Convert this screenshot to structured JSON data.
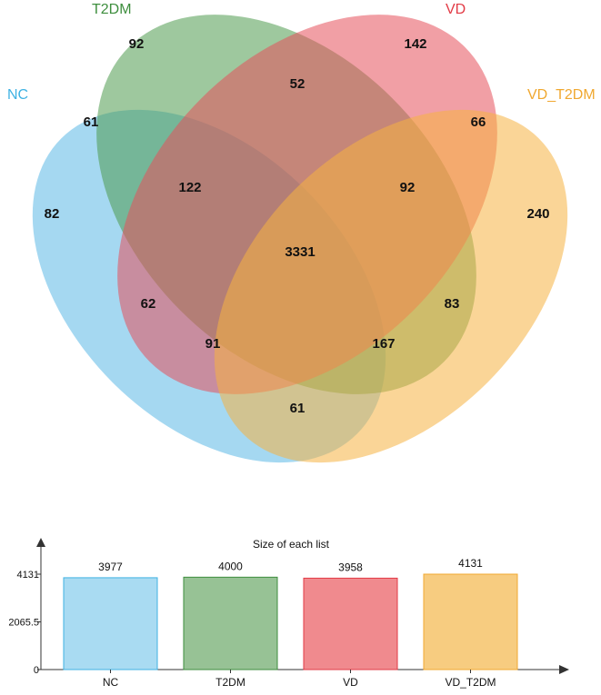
{
  "venn": {
    "sets": [
      {
        "name": "NC",
        "color": "#5BB8E6",
        "label_color": "#3FB2E3"
      },
      {
        "name": "T2DM",
        "color": "#4E9A4E",
        "label_color": "#3E8E3E"
      },
      {
        "name": "VD",
        "color": "#E5505B",
        "label_color": "#E23A45"
      },
      {
        "name": "VD_T2DM",
        "color": "#F5B342",
        "label_color": "#F0A830"
      }
    ],
    "regions": {
      "NC": "82",
      "T2DM": "92",
      "VD": "142",
      "VD_T2DM": "240",
      "NC_T2DM": "61",
      "T2DM_VD": "52",
      "VD_VD_T2DM": "66",
      "NC_VD_T2DM": "61",
      "NC_T2DM_VD": "122",
      "T2DM_VD_VD_T2DM": "92",
      "NC_VD": "62",
      "T2DM_VD_T2DM": "83",
      "NC_VD_VD_T2DM": "91",
      "NC_T2DM_VD_T2DM": "167",
      "ALL": "3331"
    }
  },
  "chart_data": {
    "type": "bar",
    "title": "Size of each list",
    "categories": [
      "NC",
      "T2DM",
      "VD",
      "VD_T2DM"
    ],
    "values": [
      3977,
      4000,
      3958,
      4131
    ],
    "value_labels": [
      "3977",
      "4000",
      "3958",
      "4131"
    ],
    "colors": [
      "#A9DBF2",
      "#97C295",
      "#F08A8E",
      "#F7CC80"
    ],
    "border_colors": [
      "#3FB2E3",
      "#3E8E3E",
      "#E23A45",
      "#F0A830"
    ],
    "yticks": [
      "0",
      "2065.5",
      "4131"
    ],
    "ytick_values": [
      0,
      2065.5,
      4131
    ],
    "ylim": [
      0,
      4131
    ]
  }
}
